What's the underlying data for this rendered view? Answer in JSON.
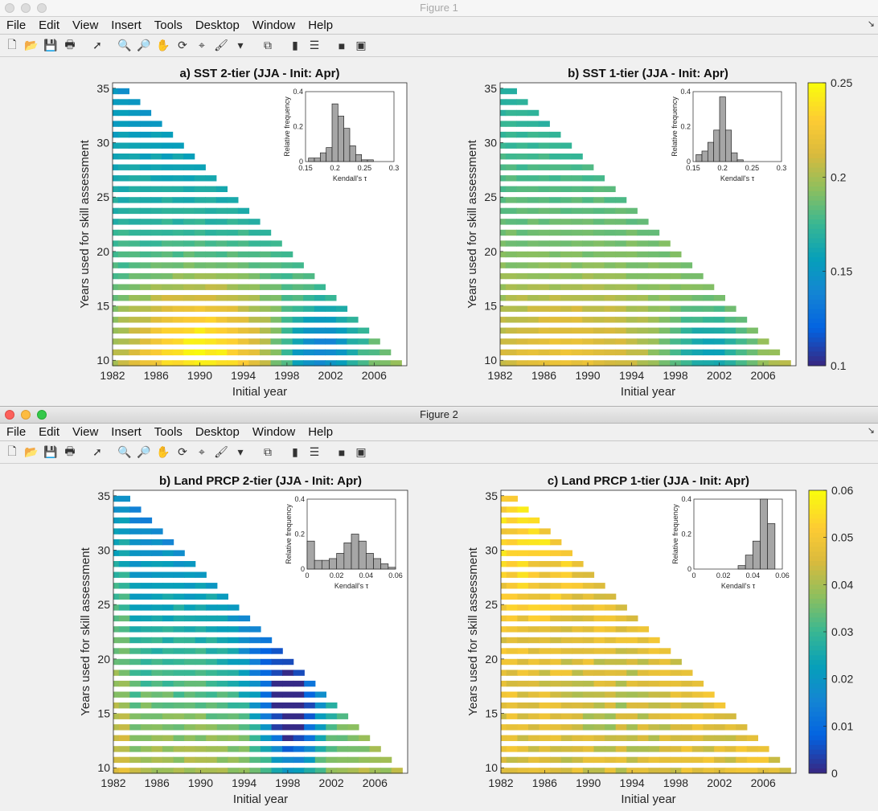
{
  "figures": [
    {
      "title": "Figure 1",
      "active": false,
      "menu": [
        "File",
        "Edit",
        "View",
        "Insert",
        "Tools",
        "Desktop",
        "Window",
        "Help"
      ],
      "panels": [
        {
          "title": "a) SST 2-tier (JJA - Init: Apr)",
          "ylabel": "Years used for skill assessment",
          "xlabel": "Initial year",
          "xticks": [
            "1982",
            "1986",
            "1990",
            "1994",
            "1998",
            "2002",
            "2006"
          ],
          "yticks": [
            "10",
            "15",
            "20",
            "25",
            "30",
            "35"
          ],
          "inset": {
            "ylabel": "Relative frequency",
            "xlabel": "Kendall's τ",
            "xticks": [
              "0.15",
              "0.2",
              "0.25",
              "0.3"
            ],
            "yticks": [
              "0",
              "0.2",
              "0.4"
            ]
          }
        },
        {
          "title": "b) SST 1-tier (JJA - Init: Apr)",
          "ylabel": "Years used for skill assessment",
          "xlabel": "Initial year",
          "xticks": [
            "1982",
            "1986",
            "1990",
            "1994",
            "1998",
            "2002",
            "2006"
          ],
          "yticks": [
            "10",
            "15",
            "20",
            "25",
            "30",
            "35"
          ],
          "inset": {
            "ylabel": "Relative frequency",
            "xlabel": "Kendall's τ",
            "xticks": [
              "0.15",
              "0.2",
              "0.25",
              "0.3"
            ],
            "yticks": [
              "0",
              "0.2",
              "0.4"
            ]
          }
        }
      ],
      "colorbar": {
        "ticks": [
          "0.25",
          "0.2",
          "0.15",
          "0.1"
        ]
      }
    },
    {
      "title": "Figure 2",
      "active": true,
      "menu": [
        "File",
        "Edit",
        "View",
        "Insert",
        "Tools",
        "Desktop",
        "Window",
        "Help"
      ],
      "panels": [
        {
          "title": "b) Land PRCP 2-tier (JJA - Init: Apr)",
          "ylabel": "Years used for skill assessment",
          "xlabel": "Initial year",
          "xticks": [
            "1982",
            "1986",
            "1990",
            "1994",
            "1998",
            "2002",
            "2006"
          ],
          "yticks": [
            "10",
            "15",
            "20",
            "25",
            "30",
            "35"
          ],
          "inset": {
            "ylabel": "Relative frequency",
            "xlabel": "Kendall's τ",
            "xticks": [
              "0",
              "0.02",
              "0.04",
              "0.06"
            ],
            "yticks": [
              "0",
              "0.2",
              "0.4"
            ]
          }
        },
        {
          "title": "c) Land PRCP 1-tier (JJA - Init: Apr)",
          "ylabel": "Years used for skill assessment",
          "xlabel": "Initial year",
          "xticks": [
            "1982",
            "1986",
            "1990",
            "1994",
            "1998",
            "2002",
            "2006"
          ],
          "yticks": [
            "10",
            "15",
            "20",
            "25",
            "30",
            "35"
          ],
          "inset": {
            "ylabel": "Relative frequency",
            "xlabel": "Kendall's τ",
            "xticks": [
              "0",
              "0.02",
              "0.04",
              "0.06"
            ],
            "yticks": [
              "0",
              "0.2",
              "0.4"
            ]
          }
        }
      ],
      "colorbar": {
        "ticks": [
          "0.06",
          "0.05",
          "0.04",
          "0.03",
          "0.02",
          "0.01",
          "0"
        ]
      }
    }
  ],
  "chart_data": [
    {
      "type": "heatmap",
      "title": "a) SST 2-tier (JJA - Init: Apr)",
      "xlabel": "Initial year",
      "ylabel": "Years used for skill assessment",
      "xlim": [
        1982,
        2008
      ],
      "ylim": [
        10,
        35
      ],
      "clim": [
        0.1,
        0.25
      ],
      "colormap": "parula"
    },
    {
      "type": "bar",
      "title": "",
      "xlabel": "Kendall's τ",
      "ylabel": "Relative frequency",
      "x": [
        0.16,
        0.17,
        0.18,
        0.19,
        0.2,
        0.21,
        0.22,
        0.23,
        0.24,
        0.25,
        0.26,
        0.27,
        0.28
      ],
      "values": [
        0.02,
        0.02,
        0.05,
        0.08,
        0.33,
        0.26,
        0.19,
        0.09,
        0.04,
        0.01,
        0.01,
        0,
        0
      ],
      "xlim": [
        0.15,
        0.3
      ],
      "ylim": [
        0,
        0.4
      ]
    },
    {
      "type": "heatmap",
      "title": "b) SST 1-tier (JJA - Init: Apr)",
      "xlabel": "Initial year",
      "ylabel": "Years used for skill assessment",
      "xlim": [
        1982,
        2008
      ],
      "ylim": [
        10,
        35
      ],
      "clim": [
        0.1,
        0.25
      ],
      "colormap": "parula"
    },
    {
      "type": "bar",
      "title": "",
      "xlabel": "Kendall's τ",
      "ylabel": "Relative frequency",
      "x": [
        0.16,
        0.17,
        0.18,
        0.19,
        0.2,
        0.21,
        0.22,
        0.23
      ],
      "values": [
        0.04,
        0.06,
        0.11,
        0.18,
        0.37,
        0.18,
        0.05,
        0.01
      ],
      "xlim": [
        0.15,
        0.3
      ],
      "ylim": [
        0,
        0.4
      ]
    },
    {
      "type": "heatmap",
      "title": "b) Land PRCP 2-tier (JJA - Init: Apr)",
      "xlabel": "Initial year",
      "ylabel": "Years used for skill assessment",
      "xlim": [
        1982,
        2008
      ],
      "ylim": [
        10,
        35
      ],
      "clim": [
        0,
        0.06
      ],
      "colormap": "parula"
    },
    {
      "type": "bar",
      "title": "",
      "xlabel": "Kendall's τ",
      "ylabel": "Relative frequency",
      "x": [
        0.0025,
        0.0075,
        0.0125,
        0.0175,
        0.0225,
        0.0275,
        0.0325,
        0.0375,
        0.0425,
        0.0475,
        0.0525,
        0.0575
      ],
      "values": [
        0.16,
        0.05,
        0.05,
        0.06,
        0.09,
        0.15,
        0.2,
        0.16,
        0.09,
        0.06,
        0.03,
        0.01
      ],
      "xlim": [
        0,
        0.06
      ],
      "ylim": [
        0,
        0.4
      ]
    },
    {
      "type": "heatmap",
      "title": "c) Land PRCP 1-tier (JJA - Init: Apr)",
      "xlabel": "Initial year",
      "ylabel": "Years used for skill assessment",
      "xlim": [
        1982,
        2008
      ],
      "ylim": [
        10,
        35
      ],
      "clim": [
        0,
        0.06
      ],
      "colormap": "parula"
    },
    {
      "type": "bar",
      "title": "",
      "xlabel": "Kendall's τ",
      "ylabel": "Relative frequency",
      "x": [
        0.0325,
        0.0375,
        0.0425,
        0.0475,
        0.0525
      ],
      "values": [
        0.02,
        0.08,
        0.16,
        0.4,
        0.26
      ],
      "xlim": [
        0,
        0.06
      ],
      "ylim": [
        0,
        0.4
      ]
    }
  ]
}
